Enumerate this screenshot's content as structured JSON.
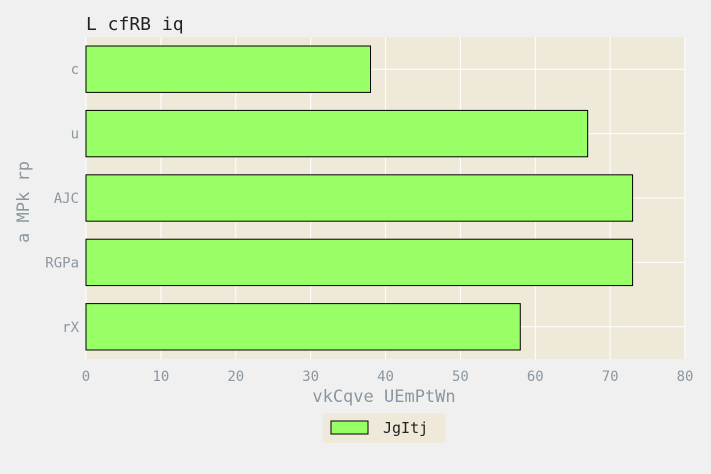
{
  "chart_data": {
    "type": "bar",
    "orientation": "horizontal",
    "title": "L cfRB iq",
    "xlabel": "vkCqve UEmPtWn",
    "ylabel": "a MPk rp",
    "categories": [
      "c",
      "u",
      "AJC",
      "RGPa",
      "rX"
    ],
    "series": [
      {
        "name": "JgItj",
        "values": [
          38,
          67,
          73,
          73,
          58
        ]
      }
    ],
    "xlim": [
      0,
      80
    ],
    "xticks": [
      0,
      10,
      20,
      30,
      40,
      50,
      60,
      70,
      80
    ],
    "grid": true,
    "legend_position": "bottom-center",
    "colors": {
      "bar": "#99ff66",
      "bar_edge": "#000000",
      "plot_bg": "#efe9d9",
      "figure_bg": "#f0f0f0",
      "grid": "#ffffff",
      "text": "#8a97a0",
      "title": "#222222"
    }
  }
}
